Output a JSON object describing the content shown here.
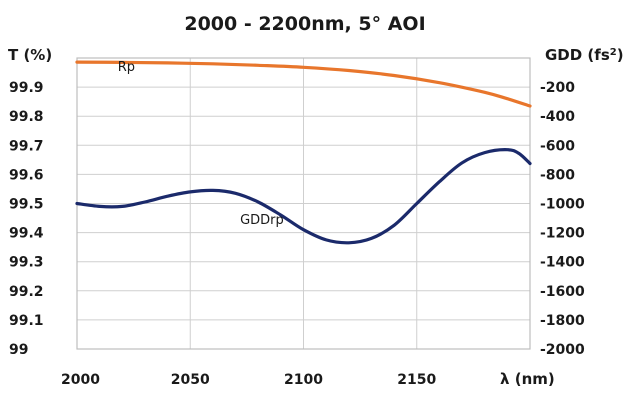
{
  "chart_data": {
    "type": "line",
    "title": "2000 - 2200nm, 5° AOI",
    "xlabel": "λ (nm)",
    "ylabel": "T (%)",
    "y2label_base": "GDD (fs",
    "y2label_sup": "2",
    "y2label_end": ")",
    "xlim": [
      2000,
      2200
    ],
    "ylim": [
      99,
      100
    ],
    "y2lim": [
      -2000,
      0
    ],
    "x_ticks": [
      "2000",
      "2050",
      "2100",
      "2150"
    ],
    "y_ticks": [
      "99",
      "99.1",
      "99.2",
      "99.3",
      "99.4",
      "99.5",
      "99.6",
      "99.7",
      "99.8",
      "99.9"
    ],
    "y2_ticks": [
      "-2000",
      "-1800",
      "-1600",
      "-1400",
      "-1200",
      "-1000",
      "-800",
      "-600",
      "-400",
      "-200"
    ],
    "grid": true,
    "series": [
      {
        "name": "Rp",
        "axis": "left",
        "color": "#e8762c",
        "x": [
          2000,
          2020,
          2040,
          2060,
          2080,
          2100,
          2120,
          2140,
          2160,
          2180,
          2190,
          2200
        ],
        "y": [
          99.986,
          99.985,
          99.983,
          99.98,
          99.975,
          99.968,
          99.957,
          99.94,
          99.915,
          99.882,
          99.86,
          99.835
        ]
      },
      {
        "name": "GDDrp",
        "axis": "right",
        "color": "#1b2a6b",
        "x": [
          2000,
          2010,
          2020,
          2030,
          2040,
          2050,
          2060,
          2070,
          2080,
          2090,
          2100,
          2110,
          2120,
          2130,
          2140,
          2150,
          2160,
          2170,
          2180,
          2190,
          2195,
          2200
        ],
        "y": [
          -1000,
          -1020,
          -1020,
          -990,
          -950,
          -920,
          -910,
          -930,
          -990,
          -1080,
          -1180,
          -1250,
          -1270,
          -1240,
          -1150,
          -1000,
          -850,
          -720,
          -650,
          -630,
          -655,
          -725
        ]
      }
    ]
  }
}
